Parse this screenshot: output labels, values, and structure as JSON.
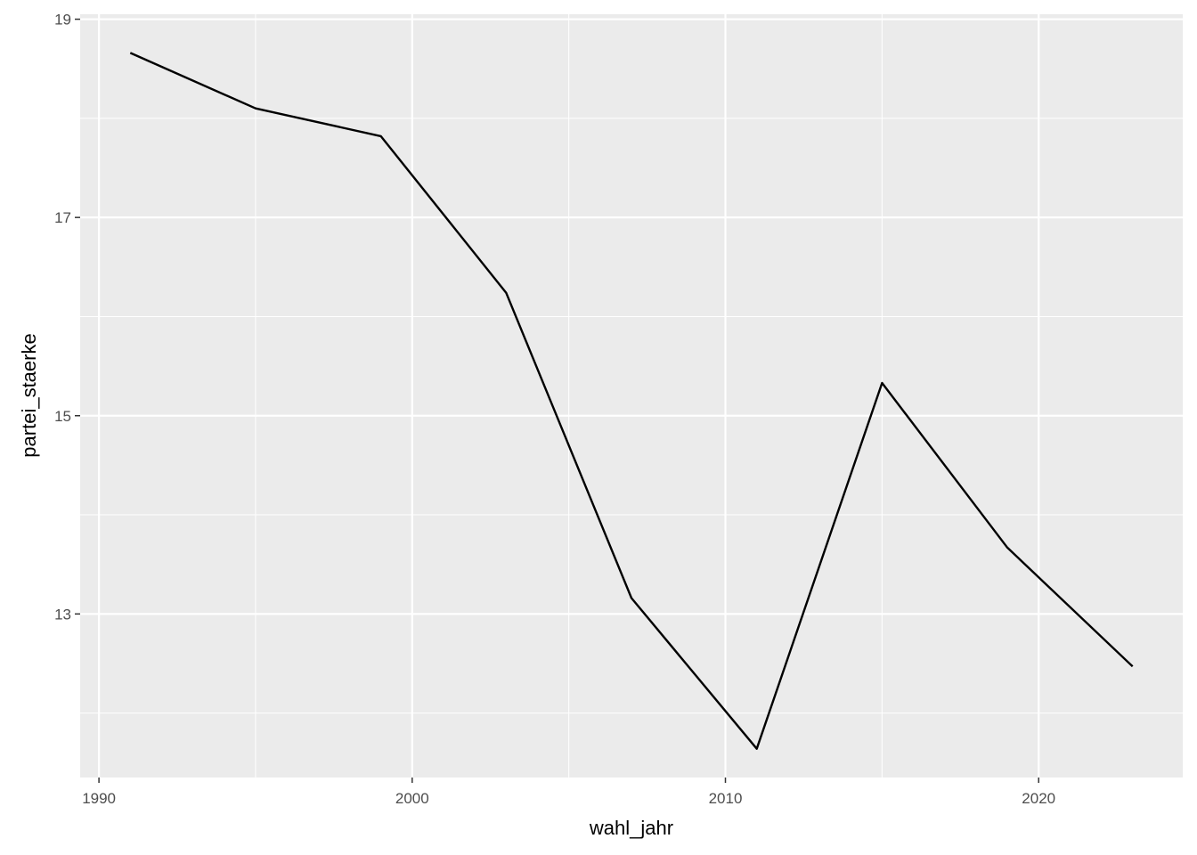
{
  "chart_data": {
    "type": "line",
    "xlabel": "wahl_jahr",
    "ylabel": "partei_staerke",
    "x_ticks": [
      1990,
      2000,
      2010,
      2020
    ],
    "y_ticks": [
      13,
      15,
      17,
      19
    ],
    "xlim": [
      1989.4,
      2024.6
    ],
    "ylim": [
      11.35,
      19.05
    ],
    "grid": true,
    "colors": {
      "panel": "#ebebeb",
      "grid": "#ffffff",
      "line": "#000000",
      "tick_text": "#4d4d4d"
    },
    "series": [
      {
        "x": [
          1991,
          1995,
          1999,
          2003,
          2007,
          2011,
          2015,
          2019,
          2023
        ],
        "y": [
          18.66,
          18.1,
          17.82,
          16.24,
          13.16,
          11.64,
          15.33,
          13.67,
          12.47
        ]
      }
    ]
  }
}
